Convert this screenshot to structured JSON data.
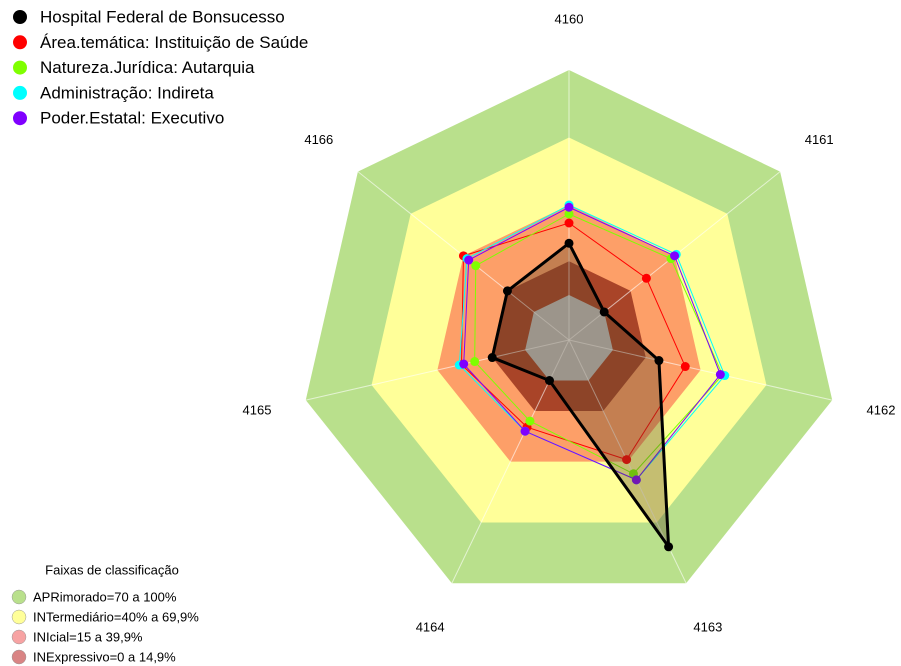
{
  "chart_data": {
    "type": "radar",
    "categories": [
      "4160",
      "4161",
      "4162",
      "4163",
      "4164",
      "4165",
      "4166"
    ],
    "rlim": [
      -20,
      100
    ],
    "center_color": "#c0c0c0",
    "bands_title": "Faixas de classificação",
    "bands": [
      {
        "label": "APRimorado=70 a 100%",
        "from": 70,
        "to": 100,
        "color": "#b9e08c",
        "legend_color": "#b9e08c"
      },
      {
        "label": "INTermediário=40% a 69,9%",
        "from": 40,
        "to": 70,
        "color": "#ffff99",
        "legend_color": "#ffff99"
      },
      {
        "label": "INIcial=15 a 39,9%",
        "from": 15,
        "to": 40,
        "color": "#fd9f68",
        "legend_color": "#f7a3a3"
      },
      {
        "label": "INExpressivo=0 a 14,9%",
        "from": 0,
        "to": 15,
        "color": "#a94428",
        "legend_color": "#d98484"
      }
    ],
    "series": [
      {
        "name": "Área.temática: Instituição de Saúde",
        "color": "#ff0000",
        "values": [
          32,
          24,
          33,
          39,
          23,
          29,
          40
        ]
      },
      {
        "name": "Natureza.Jurídica: Autarquia",
        "color": "#7fff00",
        "values": [
          36,
          38,
          50,
          46,
          20,
          23,
          33
        ]
      },
      {
        "name": "Administração: Indireta",
        "color": "#00ffff",
        "values": [
          40,
          41,
          51,
          49,
          25,
          30,
          38
        ]
      },
      {
        "name": "Poder.Estatal: Executivo",
        "color": "#8000ff",
        "values": [
          39,
          40,
          49,
          49,
          25,
          28,
          37
        ]
      },
      {
        "name": "Hospital Federal de Bonsucesso",
        "color": "#000000",
        "values": [
          23,
          0,
          21,
          82,
          0,
          15,
          15
        ]
      }
    ],
    "legend_order": [
      4,
      0,
      1,
      2,
      3
    ]
  }
}
